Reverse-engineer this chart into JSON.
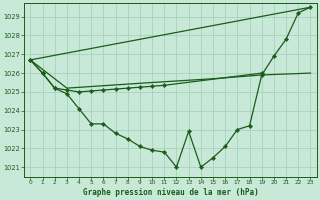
{
  "title": "Graphe pression niveau de la mer (hPa)",
  "background_color": "#c8e8d8",
  "grid_color": "#9fcfb8",
  "line_color": "#1a5c1a",
  "xlim": [
    -0.5,
    23.5
  ],
  "ylim": [
    1020.5,
    1029.7
  ],
  "yticks": [
    1021,
    1022,
    1023,
    1024,
    1025,
    1026,
    1027,
    1028,
    1029
  ],
  "xticks": [
    0,
    1,
    2,
    3,
    4,
    5,
    6,
    7,
    8,
    9,
    10,
    11,
    12,
    13,
    14,
    15,
    16,
    17,
    18,
    19,
    20,
    21,
    22,
    23
  ],
  "series_diagonal": {
    "x": [
      0,
      23
    ],
    "y": [
      1026.7,
      1029.5
    ]
  },
  "series_flat": {
    "x": [
      0,
      3,
      10,
      15,
      19,
      23
    ],
    "y": [
      1026.7,
      1025.2,
      1025.5,
      1025.7,
      1025.9,
      1026.0
    ]
  },
  "series_upper_marked": {
    "x": [
      0,
      1,
      2,
      3,
      4,
      5,
      6,
      7,
      8,
      9,
      10,
      11,
      19
    ],
    "y": [
      1026.7,
      1026.0,
      1025.2,
      1025.1,
      1025.0,
      1025.05,
      1025.1,
      1025.15,
      1025.2,
      1025.25,
      1025.3,
      1025.35,
      1026.0
    ]
  },
  "series_main": {
    "comment": "main line with markers: starts (0,1026.7), (1,1026.0),(2,1025.2),(3,1024.9),(4,1024.1),(5,1023.3),(6,1023.3),(7,1022.8),(8,1022.5),(9,1022.1),(10,1021.9),(11,1021.8),(12,1021.0),(13,1022.9),(14,1021.0),(15,1021.5),(16,1022.1),(17,1023.0),(18,1023.2),(19,1025.9),(20,1026.9),(21,1027.8),(22,1029.2),(23,1029.5)",
    "x": [
      0,
      1,
      2,
      3,
      4,
      5,
      6,
      7,
      8,
      9,
      10,
      11,
      12,
      13,
      14,
      15,
      16,
      17,
      18,
      19,
      20,
      21,
      22,
      23
    ],
    "y": [
      1026.7,
      1026.0,
      1025.2,
      1024.9,
      1024.1,
      1023.3,
      1023.3,
      1022.8,
      1022.5,
      1022.1,
      1021.9,
      1021.8,
      1021.0,
      1022.9,
      1021.0,
      1021.5,
      1022.1,
      1023.0,
      1023.2,
      1025.9,
      1026.9,
      1027.8,
      1029.2,
      1029.5
    ]
  }
}
